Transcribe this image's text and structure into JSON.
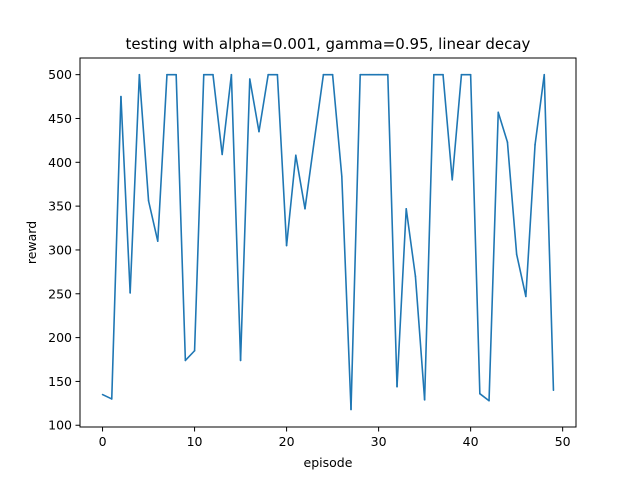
{
  "chart_data": {
    "type": "line",
    "title": "testing with alpha=0.001, gamma=0.95, linear decay",
    "xlabel": "episode",
    "ylabel": "reward",
    "xlim": [
      -2.45,
      51.45
    ],
    "ylim": [
      98,
      519
    ],
    "xticks": [
      0,
      10,
      20,
      30,
      40,
      50
    ],
    "yticks": [
      100,
      150,
      200,
      250,
      300,
      350,
      400,
      450,
      500
    ],
    "grid": false,
    "legend": "none",
    "series": [
      {
        "color": "#1f77b4",
        "x": [
          0,
          1,
          2,
          3,
          4,
          5,
          6,
          7,
          8,
          9,
          10,
          11,
          12,
          13,
          14,
          15,
          16,
          17,
          18,
          19,
          20,
          21,
          22,
          23,
          24,
          25,
          26,
          27,
          28,
          29,
          30,
          31,
          32,
          33,
          34,
          35,
          36,
          37,
          38,
          39,
          40,
          41,
          42,
          43,
          44,
          45,
          46,
          47,
          48,
          49
        ],
        "values": [
          135,
          130,
          475,
          251,
          500,
          356,
          310,
          500,
          500,
          174,
          185,
          500,
          500,
          409,
          500,
          174,
          495,
          435,
          500,
          500,
          305,
          408,
          347,
          424,
          500,
          500,
          384,
          118,
          500,
          500,
          500,
          500,
          144,
          347,
          270,
          129,
          500,
          500,
          380,
          500,
          500,
          136,
          128,
          457,
          423,
          295,
          247,
          420,
          500,
          140
        ]
      }
    ]
  }
}
